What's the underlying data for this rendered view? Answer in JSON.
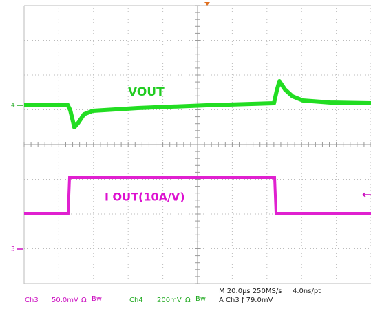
{
  "waveform_labels": {
    "vout": "VOUT",
    "iout": "I OUT(10A/V)"
  },
  "channel_markers": {
    "ch4": "4",
    "ch3": "3"
  },
  "status_bar": {
    "ch3": {
      "name": "Ch3",
      "scale": "50.0mV",
      "coupling": "Ω",
      "bw": "Bw"
    },
    "ch4": {
      "name": "Ch4",
      "scale": "200mV",
      "coupling": "Ω",
      "bw": "Bw"
    },
    "timebase": "M 20.0µs 250MS/s",
    "resolution": "4.0ns/pt",
    "trigger": "A Ch3 ƒ 79.0mV"
  }
}
